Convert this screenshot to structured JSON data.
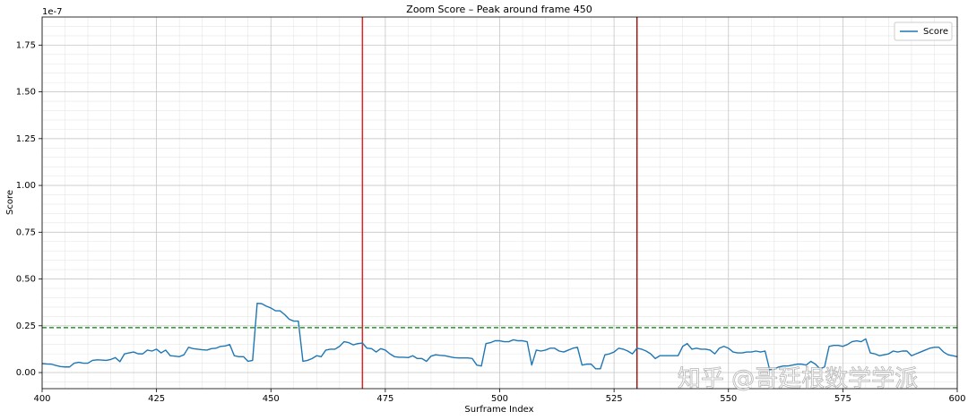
{
  "chart_data": {
    "type": "line",
    "title": "Zoom Score – Peak around frame 450",
    "x_label": "Surframe Index",
    "y_label": "Score",
    "y_offset_label": "1e-7",
    "watermark": "知乎 @哥廷根数学学派",
    "xlim": [
      400,
      600
    ],
    "ylim": [
      -0.086,
      1.9
    ],
    "xticks": [
      400,
      425,
      450,
      475,
      500,
      525,
      550,
      575,
      600
    ],
    "yticks": [
      {
        "value": 0,
        "label": "0.00"
      },
      0.25,
      {
        "value": 0.5,
        "label": "0.50"
      },
      0.75,
      {
        "value": 1,
        "label": "1.00"
      },
      1.25,
      {
        "value": 1.5,
        "label": "1.50"
      },
      1.75
    ],
    "grid": true,
    "minor_grid_divisions": 5,
    "legend": "upper right",
    "hlines": [
      {
        "value": 0.24,
        "color": "#008000",
        "style": "dashed"
      }
    ],
    "vlines": [
      {
        "value": 470,
        "color": "#d62728"
      },
      {
        "value": 530,
        "color": "#8b1a1a"
      }
    ],
    "x": [
      400,
      401,
      402,
      403,
      404,
      405,
      406,
      407,
      408,
      409,
      410,
      411,
      412,
      413,
      414,
      415,
      416,
      417,
      418,
      419,
      420,
      421,
      422,
      423,
      424,
      425,
      426,
      427,
      428,
      429,
      430,
      431,
      432,
      433,
      434,
      435,
      436,
      437,
      438,
      439,
      440,
      441,
      442,
      443,
      444,
      445,
      446,
      447,
      448,
      449,
      450,
      451,
      452,
      453,
      454,
      455,
      456,
      457,
      458,
      459,
      460,
      461,
      462,
      463,
      464,
      465,
      466,
      467,
      468,
      469,
      470,
      471,
      472,
      473,
      474,
      475,
      476,
      477,
      478,
      479,
      480,
      481,
      482,
      483,
      484,
      485,
      486,
      487,
      488,
      489,
      490,
      491,
      492,
      493,
      494,
      495,
      496,
      497,
      498,
      499,
      500,
      501,
      502,
      503,
      504,
      505,
      506,
      507,
      508,
      509,
      510,
      511,
      512,
      513,
      514,
      515,
      516,
      517,
      518,
      519,
      520,
      521,
      522,
      523,
      524,
      525,
      526,
      527,
      528,
      529,
      530,
      531,
      532,
      533,
      534,
      535,
      536,
      537,
      538,
      539,
      540,
      541,
      542,
      543,
      544,
      545,
      546,
      547,
      548,
      549,
      550,
      551,
      552,
      553,
      554,
      555,
      556,
      557,
      558,
      559,
      560,
      561,
      562,
      563,
      564,
      565,
      566,
      567,
      568,
      569,
      570,
      571,
      572,
      573,
      574,
      575,
      576,
      577,
      578,
      579,
      580,
      581,
      582,
      583,
      584,
      585,
      586,
      587,
      588,
      589,
      590,
      591,
      592,
      593,
      594,
      595,
      596,
      597,
      598,
      599,
      600
    ],
    "series": [
      {
        "name": "Score",
        "color": "#1f77b4",
        "values": [
          0.048,
          0.046,
          0.045,
          0.038,
          0.032,
          0.03,
          0.03,
          0.05,
          0.055,
          0.05,
          0.05,
          0.065,
          0.068,
          0.067,
          0.065,
          0.07,
          0.08,
          0.058,
          0.1,
          0.105,
          0.11,
          0.1,
          0.1,
          0.12,
          0.115,
          0.125,
          0.105,
          0.12,
          0.09,
          0.088,
          0.085,
          0.095,
          0.135,
          0.128,
          0.125,
          0.122,
          0.12,
          0.128,
          0.13,
          0.14,
          0.142,
          0.15,
          0.09,
          0.085,
          0.085,
          0.06,
          0.065,
          0.37,
          0.368,
          0.355,
          0.345,
          0.33,
          0.33,
          0.31,
          0.285,
          0.275,
          0.275,
          0.06,
          0.065,
          0.075,
          0.09,
          0.085,
          0.12,
          0.125,
          0.125,
          0.14,
          0.165,
          0.16,
          0.148,
          0.155,
          0.158,
          0.13,
          0.128,
          0.11,
          0.128,
          0.12,
          0.1,
          0.085,
          0.082,
          0.082,
          0.08,
          0.09,
          0.075,
          0.075,
          0.06,
          0.088,
          0.095,
          0.092,
          0.09,
          0.085,
          0.08,
          0.078,
          0.078,
          0.078,
          0.075,
          0.04,
          0.035,
          0.155,
          0.16,
          0.17,
          0.17,
          0.165,
          0.165,
          0.175,
          0.17,
          0.17,
          0.165,
          0.04,
          0.12,
          0.115,
          0.12,
          0.13,
          0.13,
          0.115,
          0.11,
          0.12,
          0.13,
          0.135,
          0.04,
          0.045,
          0.045,
          0.02,
          0.02,
          0.095,
          0.1,
          0.11,
          0.13,
          0.125,
          0.115,
          0.1,
          0.13,
          0.125,
          0.115,
          0.1,
          0.075,
          0.09,
          0.09,
          0.09,
          0.09,
          0.09,
          0.14,
          0.155,
          0.125,
          0.13,
          0.125,
          0.125,
          0.12,
          0.1,
          0.13,
          0.14,
          0.13,
          0.11,
          0.105,
          0.105,
          0.11,
          0.11,
          0.115,
          0.11,
          0.115,
          0.015,
          0.02,
          0.03,
          0.035,
          0.035,
          0.04,
          0.045,
          0.045,
          0.04,
          0.06,
          0.045,
          0.02,
          0.03,
          0.14,
          0.145,
          0.145,
          0.14,
          0.15,
          0.165,
          0.17,
          0.165,
          0.18,
          0.105,
          0.1,
          0.09,
          0.095,
          0.1,
          0.115,
          0.11,
          0.115,
          0.115,
          0.09,
          0.1,
          0.11,
          0.12,
          0.13,
          0.135,
          0.135,
          0.11,
          0.095,
          0.09,
          0.085
        ]
      }
    ]
  }
}
